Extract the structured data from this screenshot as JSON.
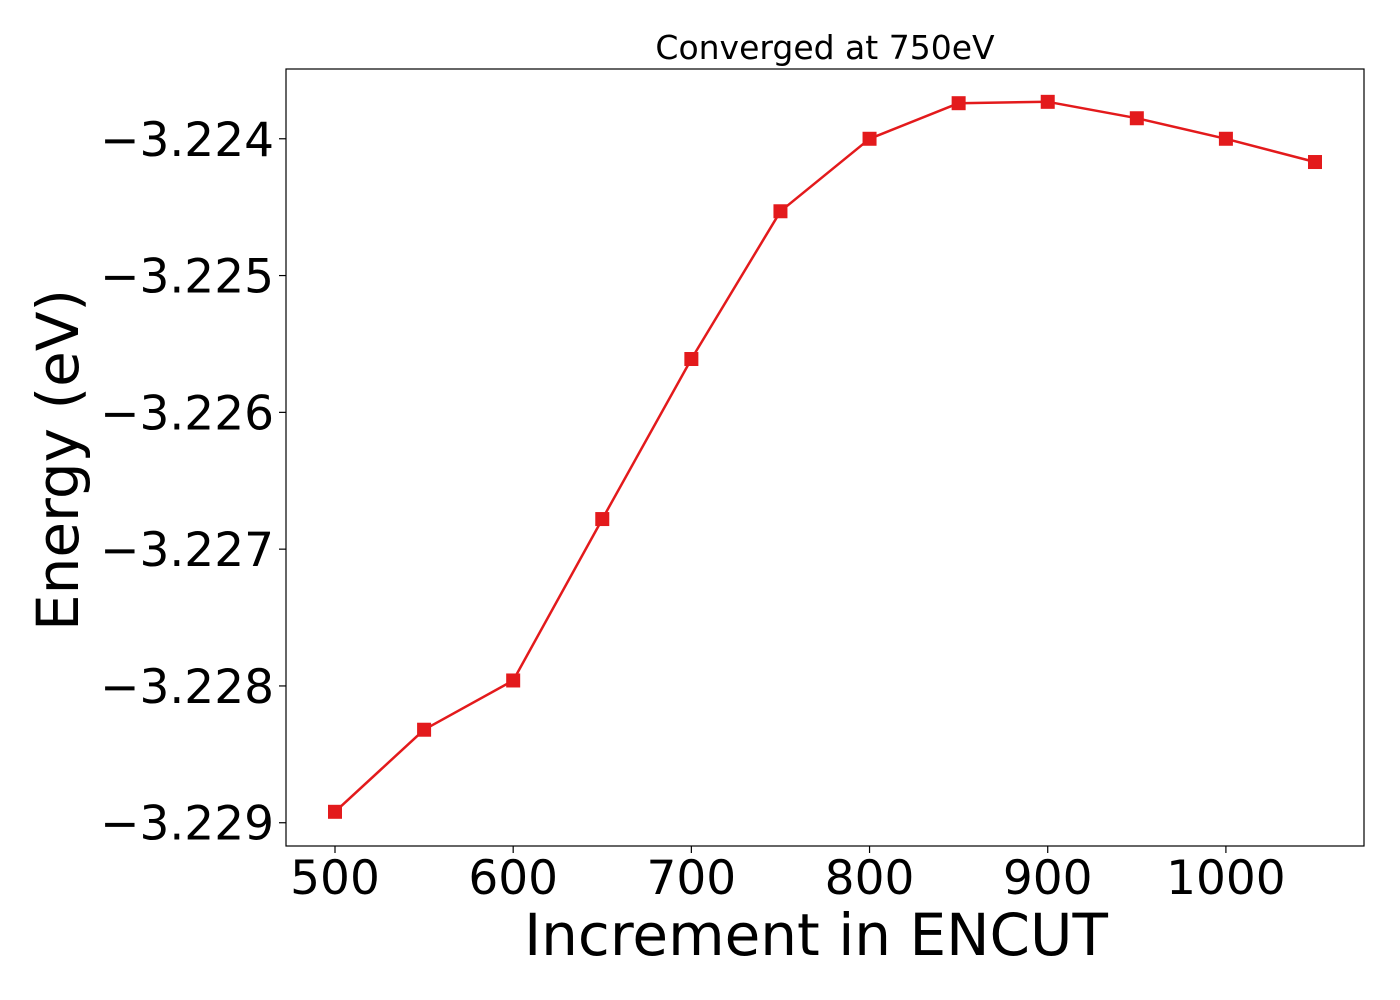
{
  "chart_data": {
    "type": "line",
    "title": "Converged at 750eV",
    "xlabel": "Increment in ENCUT",
    "ylabel": "Energy (eV)",
    "x": [
      500,
      550,
      600,
      650,
      700,
      750,
      800,
      850,
      900,
      950,
      1000,
      1050
    ],
    "series": [
      {
        "values": [
          -3.22892,
          -3.22832,
          -3.22796,
          -3.22678,
          -3.22561,
          -3.22453,
          -3.224,
          -3.22374,
          -3.22373,
          -3.22385,
          -3.224,
          -3.22417
        ],
        "color": "#e31a1c",
        "marker": "square"
      }
    ],
    "xticks": [
      500,
      600,
      700,
      800,
      900,
      1000
    ],
    "xtick_labels": [
      "500",
      "600",
      "700",
      "800",
      "900",
      "1000"
    ],
    "yticks": [
      -3.229,
      -3.228,
      -3.227,
      -3.226,
      -3.225,
      -3.224
    ],
    "ytick_labels": [
      "−3.229",
      "−3.228",
      "−3.227",
      "−3.226",
      "−3.225",
      "−3.224"
    ],
    "xlim": [
      472.5,
      1077.5
    ],
    "ylim": [
      -3.22917,
      -3.22349
    ],
    "grid": false,
    "legend": false
  }
}
